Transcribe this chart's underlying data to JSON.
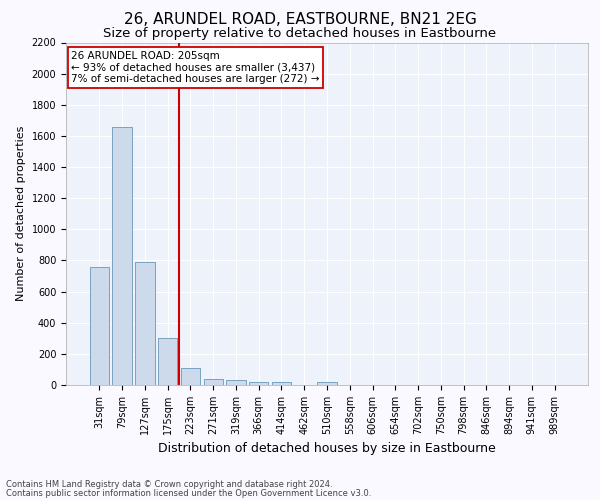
{
  "title": "26, ARUNDEL ROAD, EASTBOURNE, BN21 2EG",
  "subtitle": "Size of property relative to detached houses in Eastbourne",
  "xlabel": "Distribution of detached houses by size in Eastbourne",
  "ylabel": "Number of detached properties",
  "categories": [
    "31sqm",
    "79sqm",
    "127sqm",
    "175sqm",
    "223sqm",
    "271sqm",
    "319sqm",
    "366sqm",
    "414sqm",
    "462sqm",
    "510sqm",
    "558sqm",
    "606sqm",
    "654sqm",
    "702sqm",
    "750sqm",
    "798sqm",
    "846sqm",
    "894sqm",
    "941sqm",
    "989sqm"
  ],
  "values": [
    760,
    1660,
    790,
    300,
    110,
    40,
    30,
    20,
    20,
    0,
    20,
    0,
    0,
    0,
    0,
    0,
    0,
    0,
    0,
    0,
    0
  ],
  "bar_color": "#ccdaeb",
  "bar_edge_color": "#6699bb",
  "vline_color": "#cc0000",
  "vline_x_index": 3.5,
  "annotation_line1": "26 ARUNDEL ROAD: 205sqm",
  "annotation_line2": "← 93% of detached houses are smaller (3,437)",
  "annotation_line3": "7% of semi-detached houses are larger (272) →",
  "annotation_box_facecolor": "#ffffff",
  "annotation_box_edgecolor": "#cc0000",
  "ylim_max": 2200,
  "ytick_step": 200,
  "footer1": "Contains HM Land Registry data © Crown copyright and database right 2024.",
  "footer2": "Contains public sector information licensed under the Open Government Licence v3.0.",
  "plot_bg_color": "#eef2fb",
  "fig_bg_color": "#f9f9ff",
  "grid_color": "#ffffff",
  "title_fontsize": 11,
  "subtitle_fontsize": 9.5,
  "ylabel_fontsize": 8,
  "xlabel_fontsize": 9,
  "tick_fontsize": 7,
  "annot_fontsize": 7.5,
  "footer_fontsize": 6
}
